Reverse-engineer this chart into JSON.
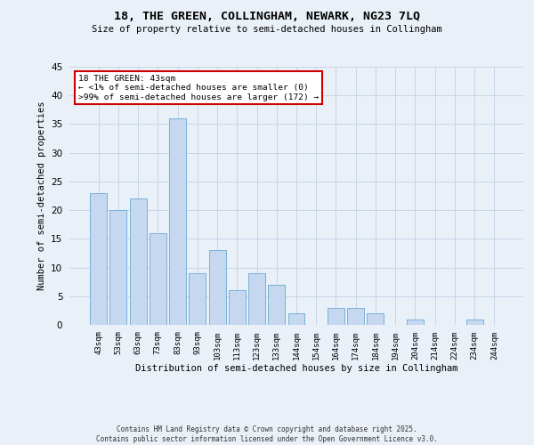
{
  "title_line1": "18, THE GREEN, COLLINGHAM, NEWARK, NG23 7LQ",
  "title_line2": "Size of property relative to semi-detached houses in Collingham",
  "xlabel": "Distribution of semi-detached houses by size in Collingham",
  "ylabel": "Number of semi-detached properties",
  "categories": [
    "43sqm",
    "53sqm",
    "63sqm",
    "73sqm",
    "83sqm",
    "93sqm",
    "103sqm",
    "113sqm",
    "123sqm",
    "133sqm",
    "144sqm",
    "154sqm",
    "164sqm",
    "174sqm",
    "184sqm",
    "194sqm",
    "204sqm",
    "214sqm",
    "224sqm",
    "234sqm",
    "244sqm"
  ],
  "values": [
    23,
    20,
    22,
    16,
    36,
    9,
    13,
    6,
    9,
    7,
    2,
    0,
    3,
    3,
    2,
    0,
    1,
    0,
    0,
    1,
    0
  ],
  "bar_color": "#c5d8f0",
  "bar_edge_color": "#6aaad4",
  "annotation_title": "18 THE GREEN: 43sqm",
  "annotation_line1": "← <1% of semi-detached houses are smaller (0)",
  "annotation_line2": ">99% of semi-detached houses are larger (172) →",
  "annotation_box_color": "#ffffff",
  "annotation_box_edge": "#cc0000",
  "ylim": [
    0,
    45
  ],
  "yticks": [
    0,
    5,
    10,
    15,
    20,
    25,
    30,
    35,
    40,
    45
  ],
  "grid_color": "#c8d4e8",
  "background_color": "#eaf0f8",
  "footer_line1": "Contains HM Land Registry data © Crown copyright and database right 2025.",
  "footer_line2": "Contains public sector information licensed under the Open Government Licence v3.0."
}
